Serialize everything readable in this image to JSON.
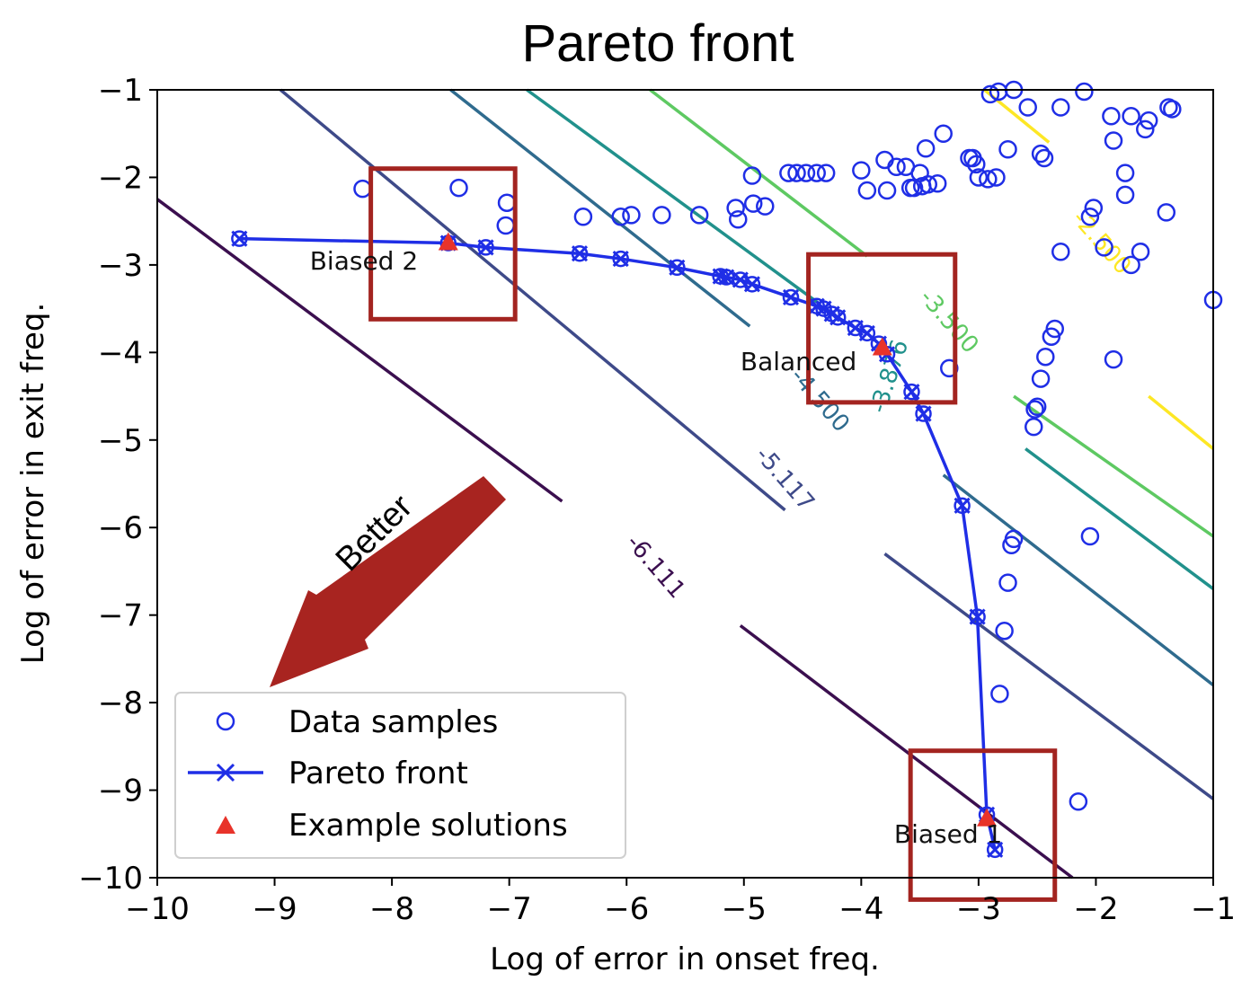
{
  "chart_data": {
    "type": "scatter",
    "title": "Pareto front",
    "xlabel": "Log of error in onset freq.",
    "ylabel": "Log of error in exit freq.",
    "xlim": [
      -10,
      -1
    ],
    "ylim": [
      -10,
      -1
    ],
    "xticks": [
      {
        "value": -10,
        "label": "−10"
      },
      {
        "value": -9,
        "label": "−9"
      },
      {
        "value": -8,
        "label": "−8"
      },
      {
        "value": -7,
        "label": "−7"
      },
      {
        "value": -6,
        "label": "−6"
      },
      {
        "value": -5,
        "label": "−5"
      },
      {
        "value": -4,
        "label": "−4"
      },
      {
        "value": -3,
        "label": "−3"
      },
      {
        "value": -2,
        "label": "−2"
      },
      {
        "value": -1,
        "label": "−1"
      }
    ],
    "yticks": [
      {
        "value": -1,
        "label": "−1"
      },
      {
        "value": -2,
        "label": "−2"
      },
      {
        "value": -3,
        "label": "−3"
      },
      {
        "value": -4,
        "label": "−4"
      },
      {
        "value": -5,
        "label": "−5"
      },
      {
        "value": -6,
        "label": "−6"
      },
      {
        "value": -7,
        "label": "−7"
      },
      {
        "value": -8,
        "label": "−8"
      },
      {
        "value": -9,
        "label": "−9"
      },
      {
        "value": -10,
        "label": "−10"
      }
    ],
    "grid": false,
    "legend_position": "bottom-left",
    "contours": [
      {
        "level": -6.111,
        "label": "-6.111",
        "color": "#3b0f4f",
        "segments": [
          [
            [
              -10,
              -2.25
            ],
            [
              -6.55,
              -5.7
            ]
          ],
          [
            [
              -5.03,
              -7.12
            ],
            [
              -2.2,
              -10
            ]
          ]
        ],
        "label_at": [
          -5.8,
          -6.5
        ],
        "label_rot": 49
      },
      {
        "level": -5.117,
        "label": "-5.117",
        "color": "#3e4a89",
        "segments": [
          [
            [
              -8.95,
              -1.0
            ],
            [
              -4.65,
              -5.8
            ]
          ],
          [
            [
              -3.8,
              -6.3
            ],
            [
              -1.0,
              -9.1
            ]
          ]
        ],
        "label_at": [
          -4.7,
          -5.5
        ],
        "label_rot": 49
      },
      {
        "level": -4.5,
        "label": "-4.500",
        "color": "#2f6b8e",
        "segments": [
          [
            [
              -7.5,
              -1.0
            ],
            [
              -4.95,
              -3.7
            ]
          ],
          [
            [
              -3.3,
              -5.4
            ],
            [
              -1.0,
              -7.8
            ]
          ]
        ],
        "label_at": [
          -4.4,
          -4.6
        ],
        "label_rot": 49
      },
      {
        "level": -3.876,
        "label": "-3.876",
        "color": "#21918c",
        "segments": [
          [
            [
              -6.85,
              -1.0
            ],
            [
              -4.35,
              -3.45
            ]
          ],
          [
            [
              -2.6,
              -5.1
            ],
            [
              -1.0,
              -6.7
            ]
          ]
        ],
        "label_at": [
          -3.7,
          -4.3
        ],
        "label_rot": -72
      },
      {
        "level": -3.5,
        "label": "-3.500",
        "color": "#5ec962",
        "segments": [
          [
            [
              -5.8,
              -1.0
            ],
            [
              -3.95,
              -2.9
            ]
          ],
          [
            [
              -2.7,
              -4.5
            ],
            [
              -1.0,
              -6.1
            ]
          ]
        ],
        "label_at": [
          -3.3,
          -3.7
        ],
        "label_rot": 49
      },
      {
        "level": -2.5,
        "label": "-2.500",
        "color": "#fde725",
        "segments": [
          [
            [
              -2.95,
              -1.0
            ],
            [
              -2.4,
              -1.6
            ]
          ],
          [
            [
              -1.55,
              -4.5
            ],
            [
              -1.0,
              -5.1
            ]
          ]
        ],
        "label_at": [
          -2.0,
          -2.8
        ],
        "label_rot": 49
      }
    ],
    "series": [
      {
        "name": "Data samples",
        "marker": "circle-open",
        "color": "#1f2ee6",
        "points": [
          [
            -8.25,
            -2.13
          ],
          [
            -7.43,
            -2.12
          ],
          [
            -7.02,
            -2.29
          ],
          [
            -7.03,
            -2.55
          ],
          [
            -6.37,
            -2.45
          ],
          [
            -6.05,
            -2.45
          ],
          [
            -5.96,
            -2.43
          ],
          [
            -5.7,
            -2.43
          ],
          [
            -5.38,
            -2.43
          ],
          [
            -5.07,
            -2.35
          ],
          [
            -5.05,
            -2.48
          ],
          [
            -4.93,
            -1.98
          ],
          [
            -4.92,
            -2.3
          ],
          [
            -4.82,
            -2.33
          ],
          [
            -4.62,
            -1.95
          ],
          [
            -4.55,
            -1.95
          ],
          [
            -4.47,
            -1.95
          ],
          [
            -4.38,
            -1.95
          ],
          [
            -4.3,
            -1.95
          ],
          [
            -4.0,
            -1.92
          ],
          [
            -3.95,
            -2.15
          ],
          [
            -3.8,
            -1.8
          ],
          [
            -3.78,
            -2.15
          ],
          [
            -3.7,
            -1.88
          ],
          [
            -3.62,
            -1.88
          ],
          [
            -3.58,
            -2.12
          ],
          [
            -3.55,
            -2.12
          ],
          [
            -3.48,
            -2.1
          ],
          [
            -3.43,
            -2.08
          ],
          [
            -3.35,
            -2.07
          ],
          [
            -3.5,
            -1.95
          ],
          [
            -3.45,
            -1.67
          ],
          [
            -3.3,
            -1.5
          ],
          [
            -3.08,
            -1.78
          ],
          [
            -3.05,
            -1.78
          ],
          [
            -3.02,
            -1.85
          ],
          [
            -3.0,
            -2.0
          ],
          [
            -2.92,
            -2.02
          ],
          [
            -2.85,
            -2.0
          ],
          [
            -2.75,
            -1.68
          ],
          [
            -2.58,
            -1.2
          ],
          [
            -2.47,
            -1.73
          ],
          [
            -2.44,
            -1.78
          ],
          [
            -2.3,
            -1.2
          ],
          [
            -2.1,
            -1.02
          ],
          [
            -1.85,
            -1.58
          ],
          [
            -1.75,
            -1.95
          ],
          [
            -1.87,
            -1.3
          ],
          [
            -1.7,
            -1.3
          ],
          [
            -1.58,
            -1.45
          ],
          [
            -1.55,
            -1.35
          ],
          [
            -1.38,
            -1.2
          ],
          [
            -1.35,
            -1.22
          ],
          [
            -1.75,
            -2.2
          ],
          [
            -1.93,
            -2.8
          ],
          [
            -2.05,
            -2.45
          ],
          [
            -2.02,
            -2.35
          ],
          [
            -2.3,
            -2.85
          ],
          [
            -1.62,
            -2.85
          ],
          [
            -1.7,
            -3.0
          ],
          [
            -1.4,
            -2.4
          ],
          [
            -1.0,
            -3.4
          ],
          [
            -2.35,
            -3.73
          ],
          [
            -2.38,
            -3.82
          ],
          [
            -2.43,
            -4.05
          ],
          [
            -2.47,
            -4.3
          ],
          [
            -2.5,
            -4.62
          ],
          [
            -2.52,
            -4.65
          ],
          [
            -2.53,
            -4.85
          ],
          [
            -1.85,
            -4.08
          ],
          [
            -2.05,
            -6.1
          ],
          [
            -2.7,
            -6.13
          ],
          [
            -2.72,
            -6.2
          ],
          [
            -2.75,
            -6.63
          ],
          [
            -2.78,
            -7.18
          ],
          [
            -2.82,
            -7.9
          ],
          [
            -2.15,
            -9.13
          ],
          [
            -3.25,
            -4.18
          ],
          [
            -2.83,
            -1.02
          ],
          [
            -2.7,
            -1.0
          ],
          [
            -2.9,
            -1.05
          ]
        ]
      },
      {
        "name": "Pareto front",
        "marker": "x-line",
        "color": "#1f2ee6",
        "points": [
          [
            -9.3,
            -2.7
          ],
          [
            -7.52,
            -2.75
          ],
          [
            -7.2,
            -2.8
          ],
          [
            -6.4,
            -2.87
          ],
          [
            -6.05,
            -2.93
          ],
          [
            -5.57,
            -3.03
          ],
          [
            -5.2,
            -3.13
          ],
          [
            -5.15,
            -3.14
          ],
          [
            -5.03,
            -3.17
          ],
          [
            -4.93,
            -3.22
          ],
          [
            -4.6,
            -3.37
          ],
          [
            -4.38,
            -3.47
          ],
          [
            -4.32,
            -3.5
          ],
          [
            -4.25,
            -3.56
          ],
          [
            -4.2,
            -3.6
          ],
          [
            -4.05,
            -3.72
          ],
          [
            -3.95,
            -3.78
          ],
          [
            -3.85,
            -3.9
          ],
          [
            -3.78,
            -4.02
          ],
          [
            -3.57,
            -4.45
          ],
          [
            -3.47,
            -4.7
          ],
          [
            -3.14,
            -5.75
          ],
          [
            -3.01,
            -7.02
          ],
          [
            -2.93,
            -9.28
          ],
          [
            -2.86,
            -9.68
          ]
        ]
      },
      {
        "name": "Example solutions",
        "marker": "triangle",
        "color": "#e8332a",
        "points": [
          [
            -7.52,
            -2.75
          ],
          [
            -3.82,
            -3.95
          ],
          [
            -2.93,
            -9.33
          ]
        ]
      }
    ],
    "annotations": [
      {
        "text": "Biased 2",
        "at": [
          -8.7,
          -3.05
        ]
      },
      {
        "text": "Balanced",
        "at": [
          -5.03,
          -4.2
        ]
      },
      {
        "text": "Biased 1",
        "at": [
          -3.72,
          -9.6
        ]
      },
      {
        "text": "Better"
      }
    ],
    "highlight_boxes": [
      {
        "x0": -8.18,
        "x1": -6.95,
        "y0": -3.62,
        "y1": -1.9,
        "color": "#a32420"
      },
      {
        "x0": -4.45,
        "x1": -3.2,
        "y0": -4.57,
        "y1": -2.88,
        "color": "#a32420"
      },
      {
        "x0": -3.58,
        "x1": -2.35,
        "y0": -10.25,
        "y1": -8.55,
        "color": "#a32420"
      }
    ]
  }
}
